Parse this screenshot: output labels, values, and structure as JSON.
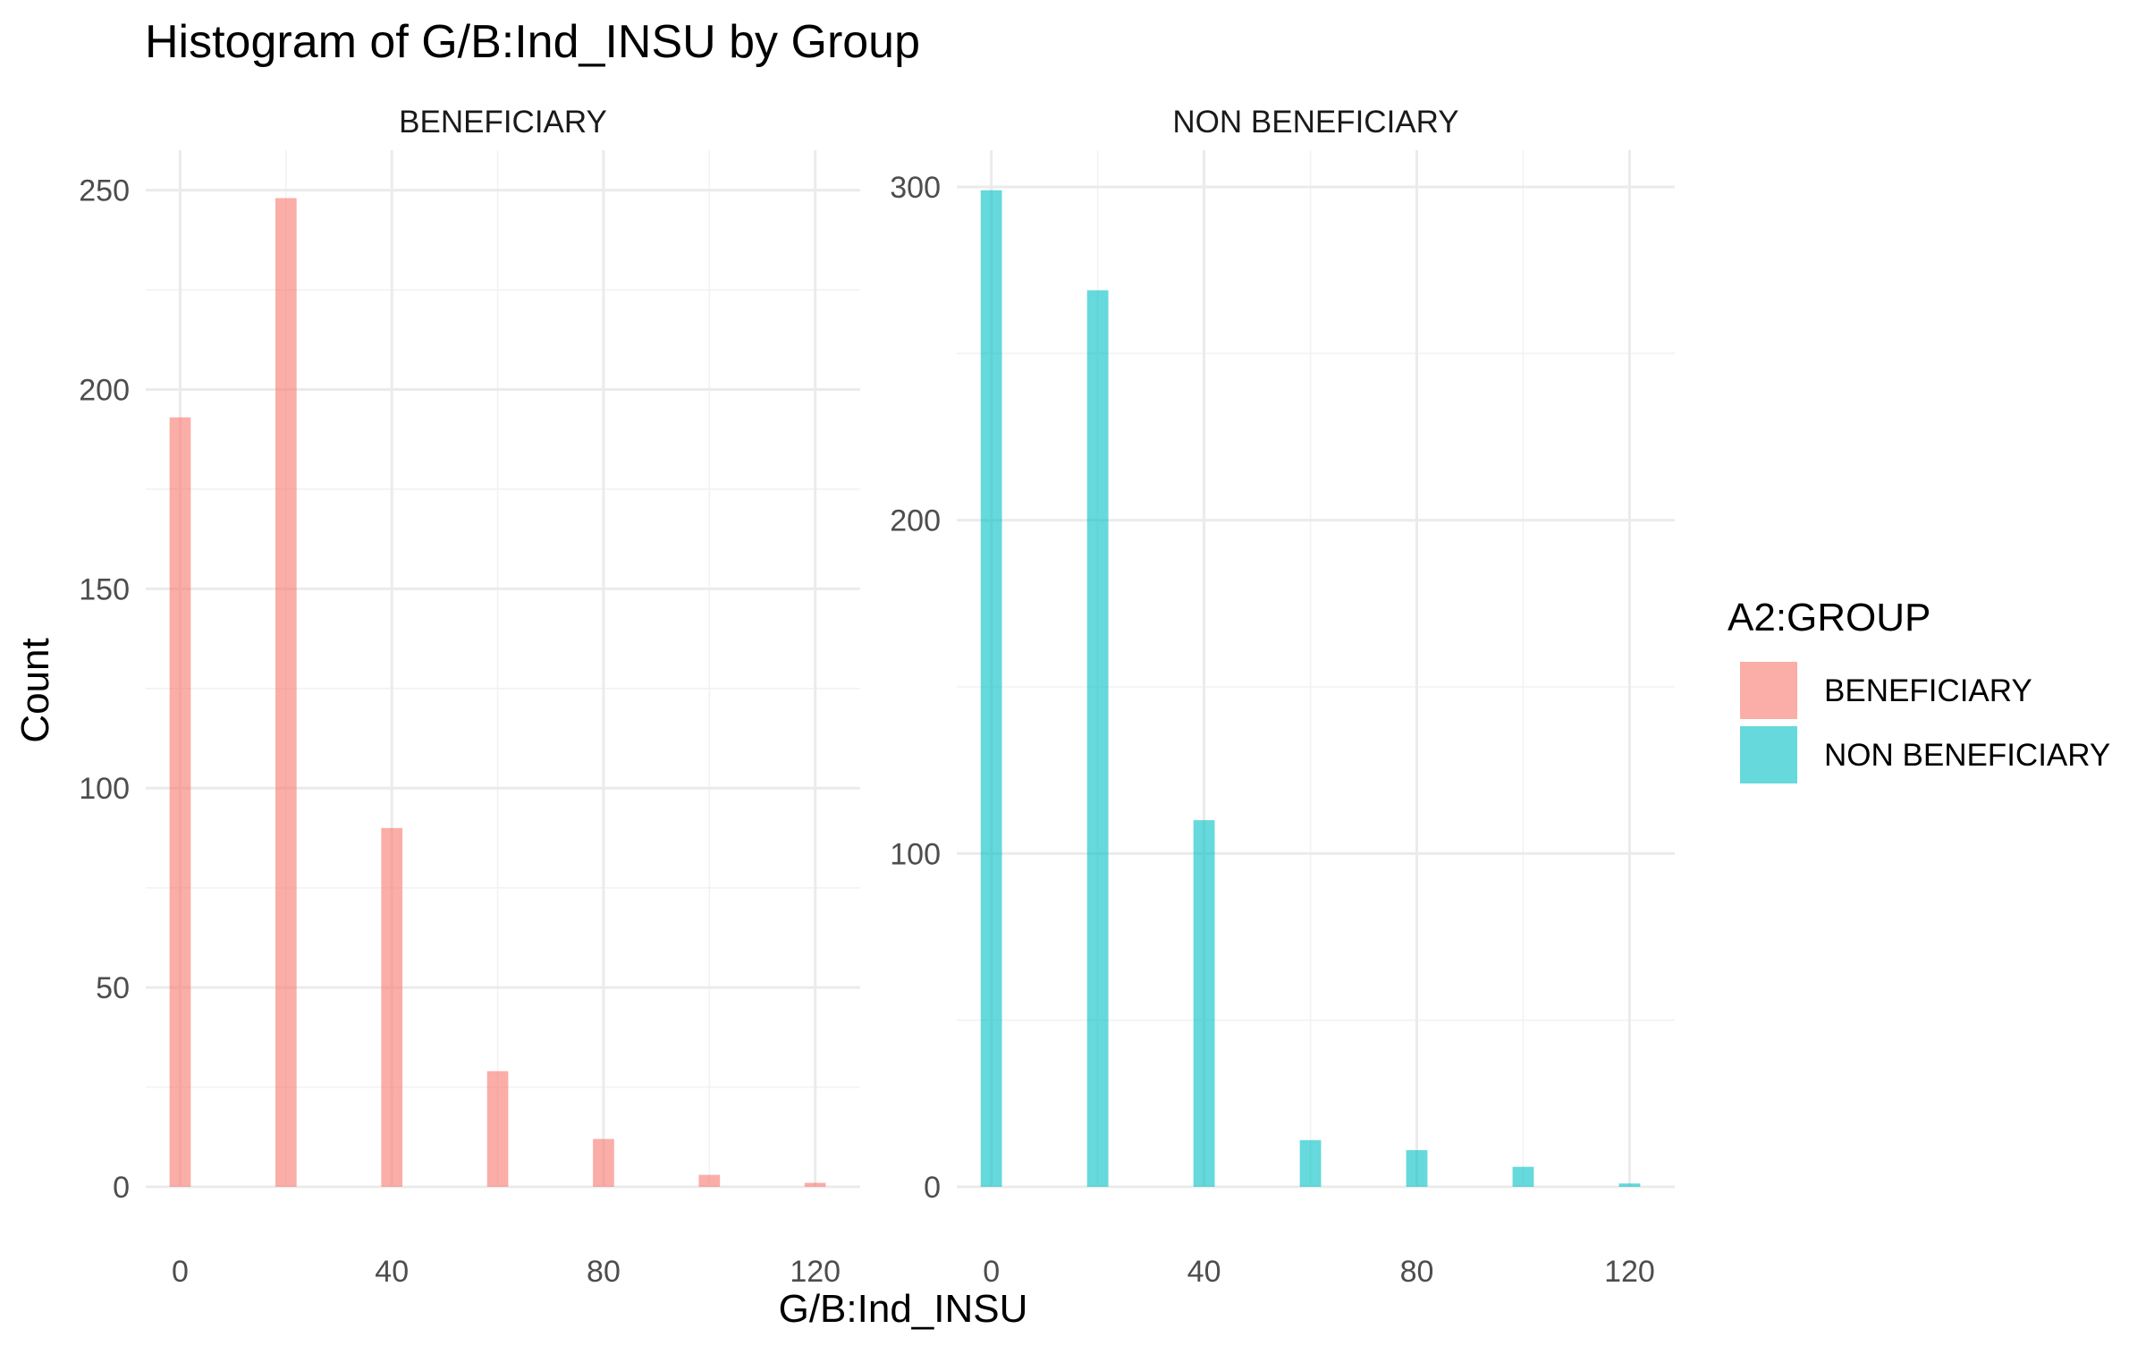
{
  "chart_data": {
    "type": "bar",
    "title": "Histogram of G/B:Ind_INSU by Group",
    "xlabel": "G/B:Ind_INSU",
    "ylabel": "Count",
    "grid": true,
    "legend": {
      "title": "A2:GROUP",
      "position": "right",
      "entries": [
        {
          "label": "BENEFICIARY",
          "color": "#F8766D"
        },
        {
          "label": "NON BENEFICIARY",
          "color": "#00BFC4"
        }
      ]
    },
    "bar_opacity": 0.6,
    "bin_width": 4,
    "x_ticks": [
      0,
      40,
      80,
      120
    ],
    "panels": [
      {
        "strip": "BENEFICIARY",
        "color": "#F8766D",
        "xlim": [
          -6.5,
          128.5
        ],
        "ylim": [
          0,
          260
        ],
        "y_ticks": [
          0,
          50,
          100,
          150,
          200,
          250
        ],
        "x": [
          0,
          20,
          40,
          60,
          80,
          100,
          120
        ],
        "values": [
          193,
          248,
          90,
          29,
          12,
          3,
          1
        ]
      },
      {
        "strip": "NON BENEFICIARY",
        "color": "#00BFC4",
        "xlim": [
          -6.5,
          128.5
        ],
        "ylim": [
          0,
          311
        ],
        "y_ticks": [
          0,
          100,
          200,
          300
        ],
        "x": [
          0,
          20,
          40,
          60,
          80,
          100,
          120
        ],
        "values": [
          299,
          269,
          110,
          14,
          11,
          6,
          1
        ]
      }
    ]
  }
}
